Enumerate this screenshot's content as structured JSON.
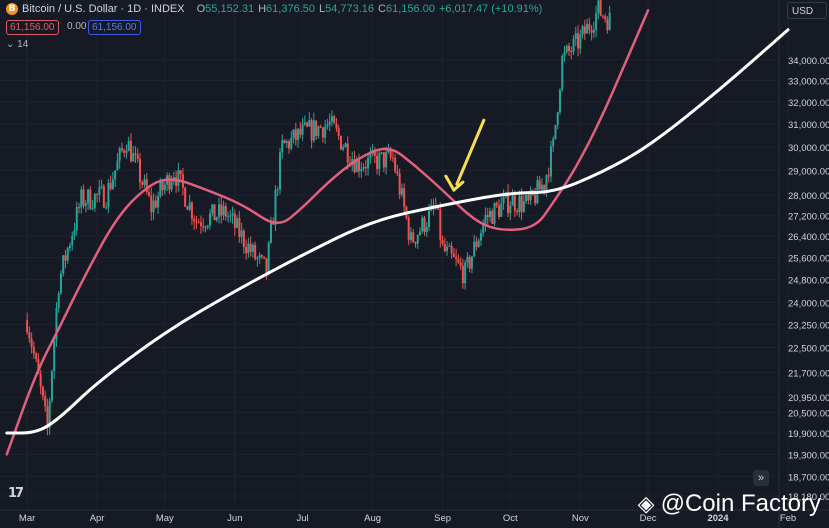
{
  "header": {
    "symbol": "Bitcoin / U.S. Dollar · 1D · INDEX",
    "open_label": "O",
    "open": "55,152.31",
    "high_label": "H",
    "high": "61,376.50",
    "low_label": "L",
    "low": "54,773.16",
    "close_label": "C",
    "close": "61,156.00",
    "change": "+6,017.47 (+10.91%)",
    "coin_glyph": "B"
  },
  "badges": {
    "sell": "61,156.00",
    "spread": "0.00",
    "buy": "61,156.00"
  },
  "indicator_collapse": "14",
  "currency_button": "USD",
  "goto_button": "»",
  "tv_logo": "17",
  "watermark": "@Coin Factory",
  "colors": {
    "background": "#161a25",
    "up": "#26a69a",
    "down": "#ef5350",
    "ma_short": "#e0607e",
    "ma_long": "#ffffff",
    "arrow": "#f4e04d",
    "grid": "#1f2330",
    "axis_text": "#d1d4dc"
  },
  "chart_data": {
    "type": "line",
    "title": "Bitcoin / U.S. Dollar · 1D · INDEX",
    "y_scale": "log",
    "ylim": [
      18180,
      36000
    ],
    "x_ticks": [
      "Mar",
      "Apr",
      "May",
      "Jun",
      "Jul",
      "Aug",
      "Sep",
      "Oct",
      "Nov",
      "Dec",
      "2024",
      "Feb"
    ],
    "y_ticks": [
      "34,000.00",
      "33,000.00",
      "32,000.00",
      "31,000.00",
      "30,000.00",
      "29,000.00",
      "28,000.00",
      "27,200.00",
      "26,400.00",
      "25,600.00",
      "24,800.00",
      "24,000.00",
      "23,250.00",
      "22,500.00",
      "21,700.00",
      "20,950.00",
      "20,500.00",
      "19,900.00",
      "19,300.00",
      "18,700.00",
      "18,180.00"
    ],
    "grid": true,
    "legend": "none",
    "price_path": [
      {
        "x": "2023-03-01",
        "y": 23400
      },
      {
        "x": "2023-03-10",
        "y": 20000
      },
      {
        "x": "2023-03-15",
        "y": 24700
      },
      {
        "x": "2023-03-25",
        "y": 27800
      },
      {
        "x": "2023-04-05",
        "y": 28000
      },
      {
        "x": "2023-04-14",
        "y": 30300
      },
      {
        "x": "2023-04-25",
        "y": 27500
      },
      {
        "x": "2023-05-05",
        "y": 29000
      },
      {
        "x": "2023-05-15",
        "y": 27000
      },
      {
        "x": "2023-05-28",
        "y": 27300
      },
      {
        "x": "2023-06-10",
        "y": 25600
      },
      {
        "x": "2023-06-15",
        "y": 25100
      },
      {
        "x": "2023-06-22",
        "y": 30000
      },
      {
        "x": "2023-07-01",
        "y": 30600
      },
      {
        "x": "2023-07-13",
        "y": 31000
      },
      {
        "x": "2023-07-25",
        "y": 29300
      },
      {
        "x": "2023-08-10",
        "y": 29500
      },
      {
        "x": "2023-08-18",
        "y": 26200
      },
      {
        "x": "2023-08-29",
        "y": 27500
      },
      {
        "x": "2023-09-01",
        "y": 25900
      },
      {
        "x": "2023-09-11",
        "y": 25000
      },
      {
        "x": "2023-09-20",
        "y": 27100
      },
      {
        "x": "2023-10-01",
        "y": 27800
      },
      {
        "x": "2023-10-09",
        "y": 27600
      },
      {
        "x": "2023-10-16",
        "y": 28500
      },
      {
        "x": "2023-10-20",
        "y": 30000
      },
      {
        "x": "2023-10-24",
        "y": 34000
      },
      {
        "x": "2023-11-01",
        "y": 35000
      },
      {
        "x": "2023-11-09",
        "y": 36500
      },
      {
        "x": "2023-11-14",
        "y": 36000
      }
    ],
    "series": [
      {
        "values": [
          {
            "x": "2023-02-20",
            "y": 19300
          },
          {
            "x": "2023-03-05",
            "y": 21700
          },
          {
            "x": "2023-03-15",
            "y": 23100
          },
          {
            "x": "2023-03-25",
            "y": 24700
          },
          {
            "x": "2023-04-10",
            "y": 27200
          },
          {
            "x": "2023-04-25",
            "y": 28500
          },
          {
            "x": "2023-05-05",
            "y": 28700
          },
          {
            "x": "2023-05-20",
            "y": 28200
          },
          {
            "x": "2023-06-05",
            "y": 27600
          },
          {
            "x": "2023-06-20",
            "y": 26700
          },
          {
            "x": "2023-07-01",
            "y": 27500
          },
          {
            "x": "2023-07-12",
            "y": 28500
          },
          {
            "x": "2023-07-25",
            "y": 29500
          },
          {
            "x": "2023-08-08",
            "y": 30100
          },
          {
            "x": "2023-08-20",
            "y": 29200
          },
          {
            "x": "2023-09-01",
            "y": 28200
          },
          {
            "x": "2023-09-15",
            "y": 27000
          },
          {
            "x": "2023-09-26",
            "y": 26600
          },
          {
            "x": "2023-10-12",
            "y": 26700
          },
          {
            "x": "2023-10-20",
            "y": 27700
          },
          {
            "x": "2023-10-30",
            "y": 29100
          },
          {
            "x": "2023-11-10",
            "y": 31200
          },
          {
            "x": "2023-11-20",
            "y": 33600
          },
          {
            "x": "2023-12-01",
            "y": 36500
          }
        ]
      },
      {
        "values": [
          {
            "x": "2023-02-20",
            "y": 19900
          },
          {
            "x": "2023-03-05",
            "y": 19900
          },
          {
            "x": "2023-03-15",
            "y": 20300
          },
          {
            "x": "2023-04-01",
            "y": 21400
          },
          {
            "x": "2023-05-01",
            "y": 23000
          },
          {
            "x": "2023-06-01",
            "y": 24400
          },
          {
            "x": "2023-07-01",
            "y": 25700
          },
          {
            "x": "2023-08-01",
            "y": 27000
          },
          {
            "x": "2023-09-01",
            "y": 27600
          },
          {
            "x": "2023-10-01",
            "y": 28100
          },
          {
            "x": "2023-10-20",
            "y": 28100
          },
          {
            "x": "2023-11-10",
            "y": 28900
          },
          {
            "x": "2023-12-01",
            "y": 30000
          },
          {
            "x": "2024-01-01",
            "y": 32500
          },
          {
            "x": "2024-02-01",
            "y": 35500
          }
        ]
      }
    ],
    "annotations": [
      {
        "type": "arrow",
        "text": "",
        "x": "2023-09-06",
        "y": 28200
      }
    ]
  }
}
